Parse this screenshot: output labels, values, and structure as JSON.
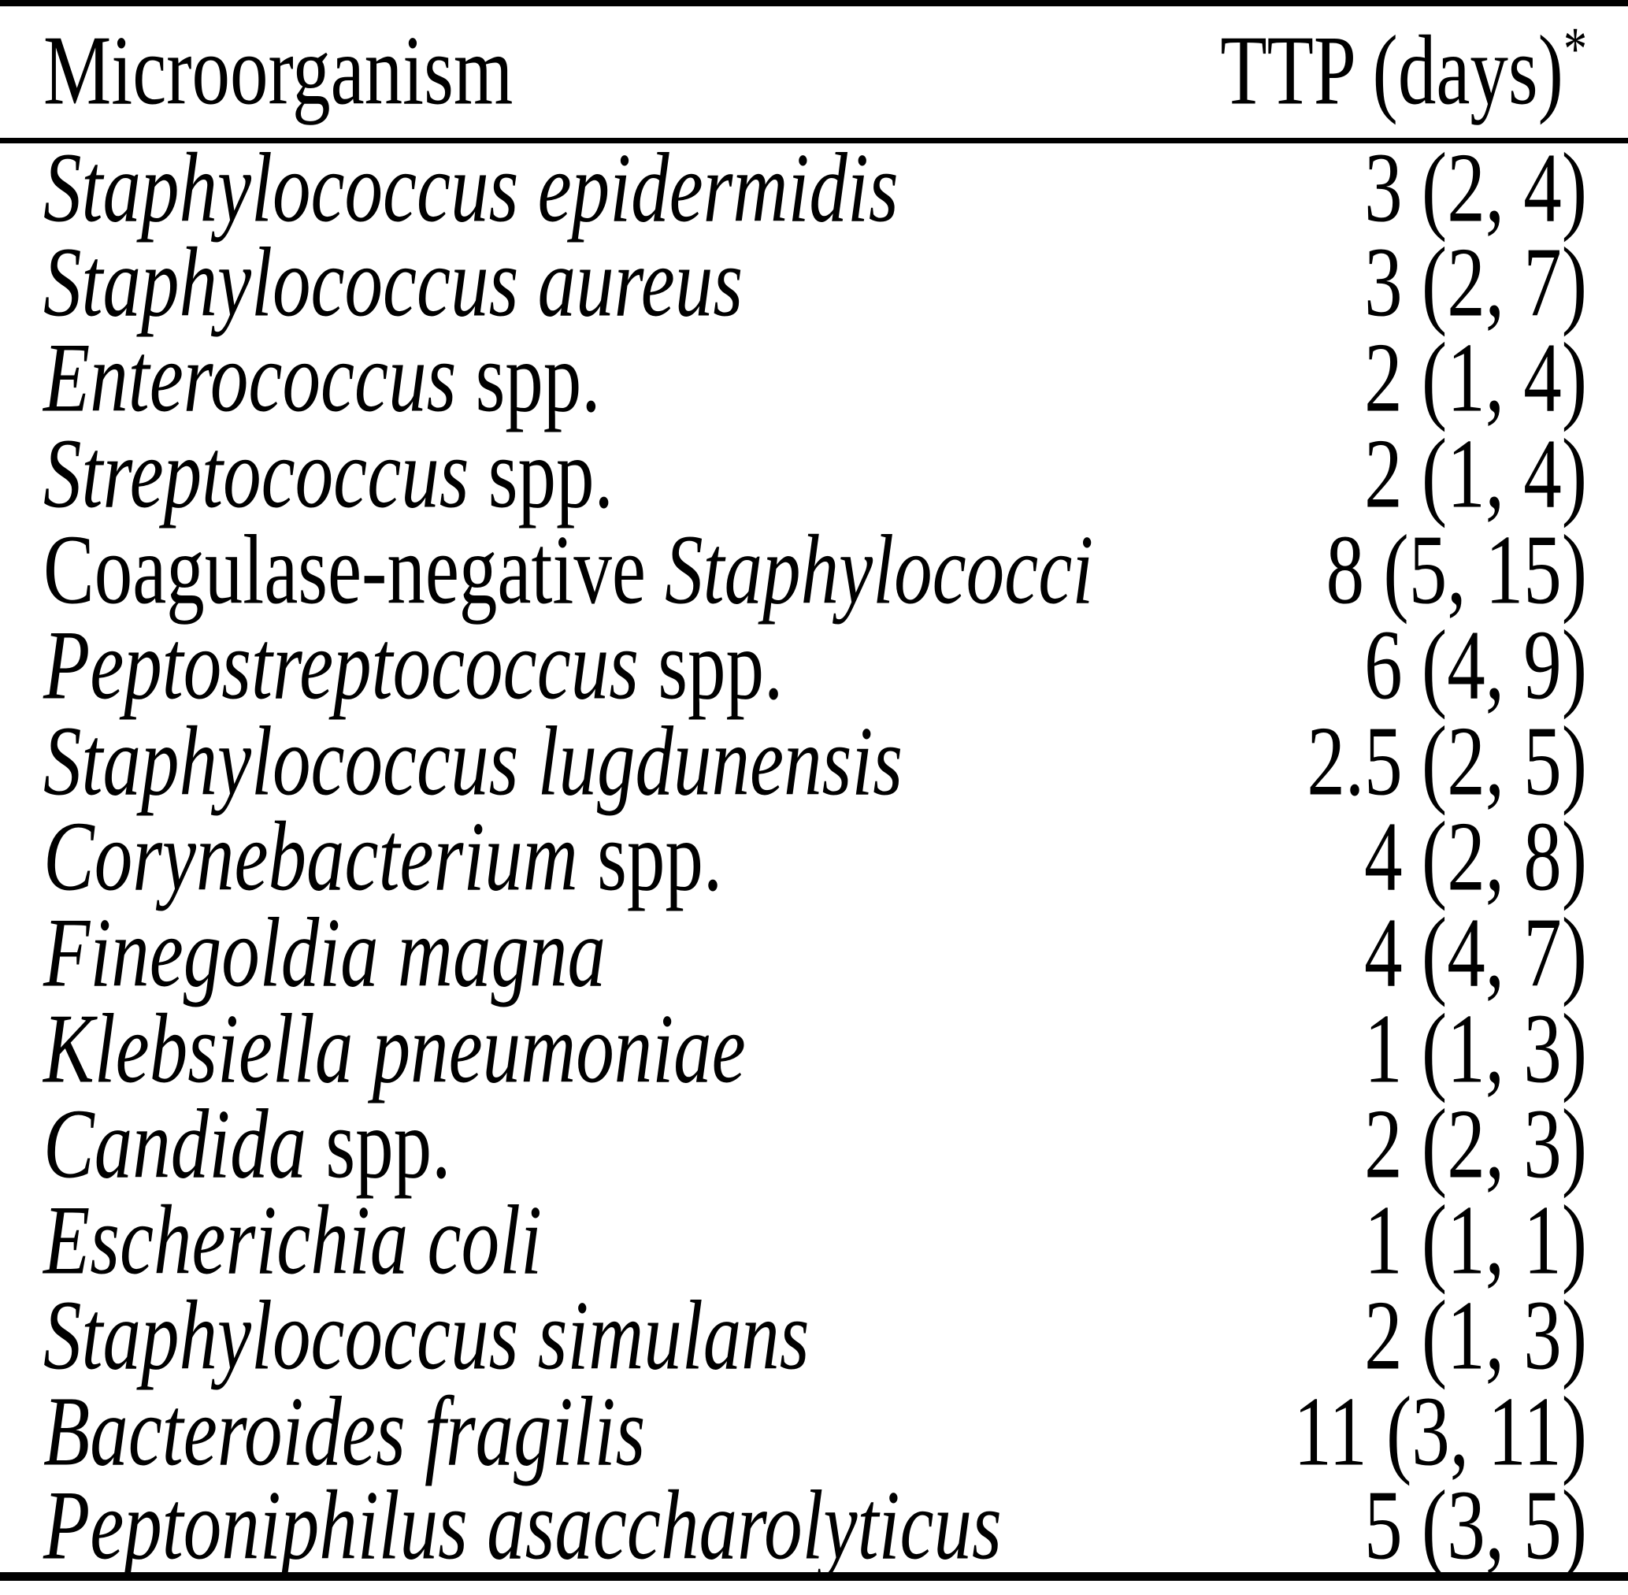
{
  "colors": {
    "background": "#ffffff",
    "text": "#000000",
    "rule": "#000000"
  },
  "table": {
    "columns": [
      {
        "label": "Microorganism"
      },
      {
        "label": "TTP (days)",
        "superscript": "*"
      }
    ],
    "rows": [
      {
        "microorganism": [
          {
            "text": "Staphylococcus epidermidis",
            "italic": true
          }
        ],
        "ttp": "3 (2, 4)"
      },
      {
        "microorganism": [
          {
            "text": "Staphylococcus aureus",
            "italic": true
          }
        ],
        "ttp": "3 (2, 7)"
      },
      {
        "microorganism": [
          {
            "text": "Enterococcus",
            "italic": true
          },
          {
            "text": " spp.",
            "italic": false
          }
        ],
        "ttp": "2 (1, 4)"
      },
      {
        "microorganism": [
          {
            "text": "Streptococcus",
            "italic": true
          },
          {
            "text": " spp.",
            "italic": false
          }
        ],
        "ttp": "2 (1, 4)"
      },
      {
        "microorganism": [
          {
            "text": "Coagulase-negative ",
            "italic": false
          },
          {
            "text": "Staphylococci",
            "italic": true
          }
        ],
        "ttp": "8 (5, 15)"
      },
      {
        "microorganism": [
          {
            "text": "Peptostreptococcus",
            "italic": true
          },
          {
            "text": " spp.",
            "italic": false
          }
        ],
        "ttp": "6 (4, 9)"
      },
      {
        "microorganism": [
          {
            "text": "Staphylococcus lugdunensis",
            "italic": true
          }
        ],
        "ttp": "2.5 (2, 5)"
      },
      {
        "microorganism": [
          {
            "text": "Corynebacterium",
            "italic": true
          },
          {
            "text": " spp.",
            "italic": false
          }
        ],
        "ttp": "4 (2, 8)"
      },
      {
        "microorganism": [
          {
            "text": "Finegoldia magna",
            "italic": true
          }
        ],
        "ttp": "4 (4, 7)"
      },
      {
        "microorganism": [
          {
            "text": "Klebsiella pneumoniae",
            "italic": true
          }
        ],
        "ttp": "1 (1, 3)"
      },
      {
        "microorganism": [
          {
            "text": "Candida",
            "italic": true
          },
          {
            "text": " spp.",
            "italic": false
          }
        ],
        "ttp": "2 (2, 3)"
      },
      {
        "microorganism": [
          {
            "text": "Escherichia coli",
            "italic": true
          }
        ],
        "ttp": "1 (1, 1)"
      },
      {
        "microorganism": [
          {
            "text": "Staphylococcus simulans",
            "italic": true
          }
        ],
        "ttp": "2 (1, 3)"
      },
      {
        "microorganism": [
          {
            "text": "Bacteroides fragilis",
            "italic": true
          }
        ],
        "ttp": "11 (3, 11)"
      },
      {
        "microorganism": [
          {
            "text": "Peptoniphilus asaccharolyticus",
            "italic": true
          }
        ],
        "ttp": "5 (3, 5)"
      }
    ]
  }
}
